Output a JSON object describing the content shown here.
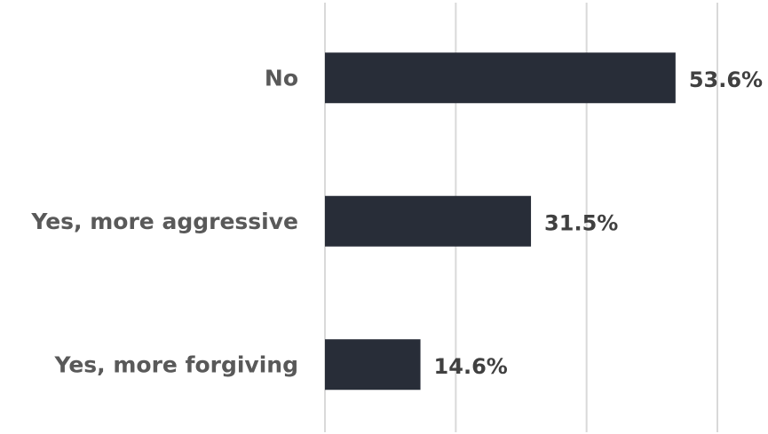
{
  "chart_data": {
    "type": "bar",
    "orientation": "horizontal",
    "categories": [
      "No",
      "Yes, more aggressive",
      "Yes, more forgiving"
    ],
    "values": [
      53.6,
      31.5,
      14.6
    ],
    "value_labels": [
      "53.6%",
      "31.5%",
      "14.6%"
    ],
    "unit": "%",
    "xlim": [
      0,
      60
    ],
    "x_gridlines": [
      0,
      20,
      40,
      60
    ],
    "grid": true,
    "legend": "none",
    "bar_color": "#282d38"
  }
}
